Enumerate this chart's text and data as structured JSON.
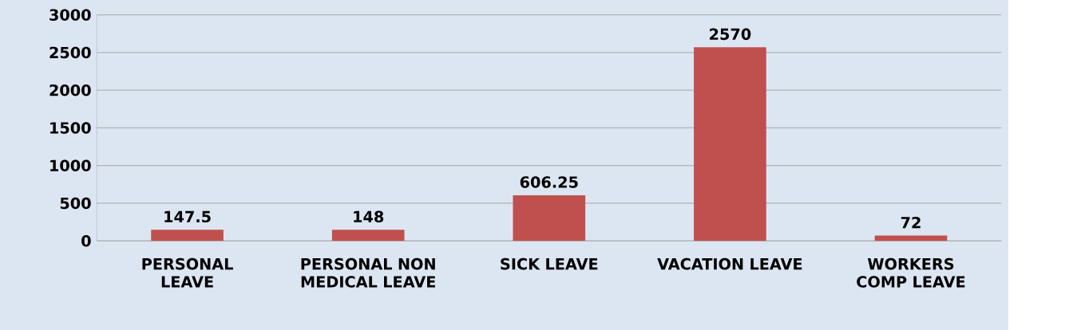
{
  "chart_data": {
    "type": "bar",
    "categories": [
      "PERSONAL LEAVE",
      "PERSONAL NON MEDICAL LEAVE",
      "SICK LEAVE",
      "VACATION LEAVE",
      "WORKERS COMP LEAVE"
    ],
    "values": [
      147.5,
      148,
      606.25,
      2570,
      72
    ],
    "color": "#c0504d",
    "ylim": [
      0,
      3000
    ],
    "yticks": [
      0,
      500,
      1000,
      1500,
      2000,
      2500,
      3000
    ],
    "grid": "y",
    "data_labels": true
  }
}
